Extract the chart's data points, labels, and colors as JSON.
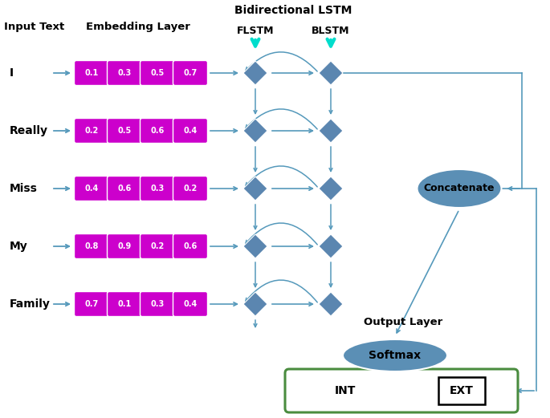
{
  "title": "Bidirectional LSTM",
  "input_words": [
    "I",
    "Really",
    "Miss",
    "My",
    "Family"
  ],
  "embedding_values": [
    [
      0.1,
      0.3,
      0.5,
      0.7
    ],
    [
      0.2,
      0.5,
      0.6,
      0.4
    ],
    [
      0.4,
      0.6,
      0.3,
      0.2
    ],
    [
      0.8,
      0.9,
      0.2,
      0.6
    ],
    [
      0.7,
      0.1,
      0.3,
      0.4
    ]
  ],
  "embedding_layer_label": "Embedding Layer",
  "input_text_label": "Input Text",
  "flstm_label": "FLSTM",
  "blstm_label": "BLSTM",
  "concatenate_label": "Concatenate",
  "output_layer_label": "Output Layer",
  "softmax_label": "Softmax",
  "int_label": "INT",
  "ext_label": "EXT",
  "box_color": "#CC00CC",
  "arrow_color": "#5599BB",
  "cyan_arrow_color": "#00DDCC",
  "diamond_color": "#5B86B0",
  "ellipse_color": "#5B8FB5",
  "output_box_edge_color": "#4A8C3F",
  "bg_color": "#FFFFFF"
}
